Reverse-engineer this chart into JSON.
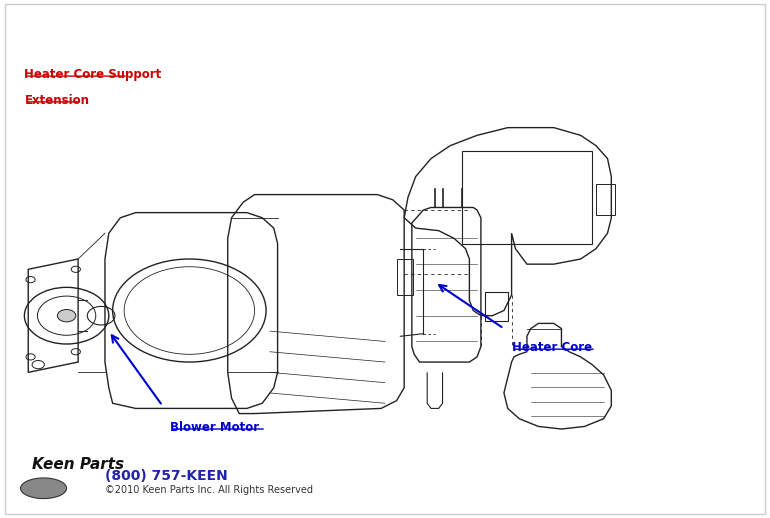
{
  "background_color": "#ffffff",
  "label_heater_core_support_line1": "Heater Core Support",
  "label_heater_core_support_line2": "Extension",
  "label_blower_motor": "Blower Motor",
  "label_heater_core": "Heater Core",
  "keen_parts_phone": "(800) 757-KEEN",
  "keen_parts_copyright": "©2010 Keen Parts Inc. All Rights Reserved",
  "label_color": "#cc0000",
  "arrow_color": "#0000cc",
  "keen_phone_color": "#2222aa",
  "keen_copyright_color": "#333333",
  "line_color": "#222222"
}
